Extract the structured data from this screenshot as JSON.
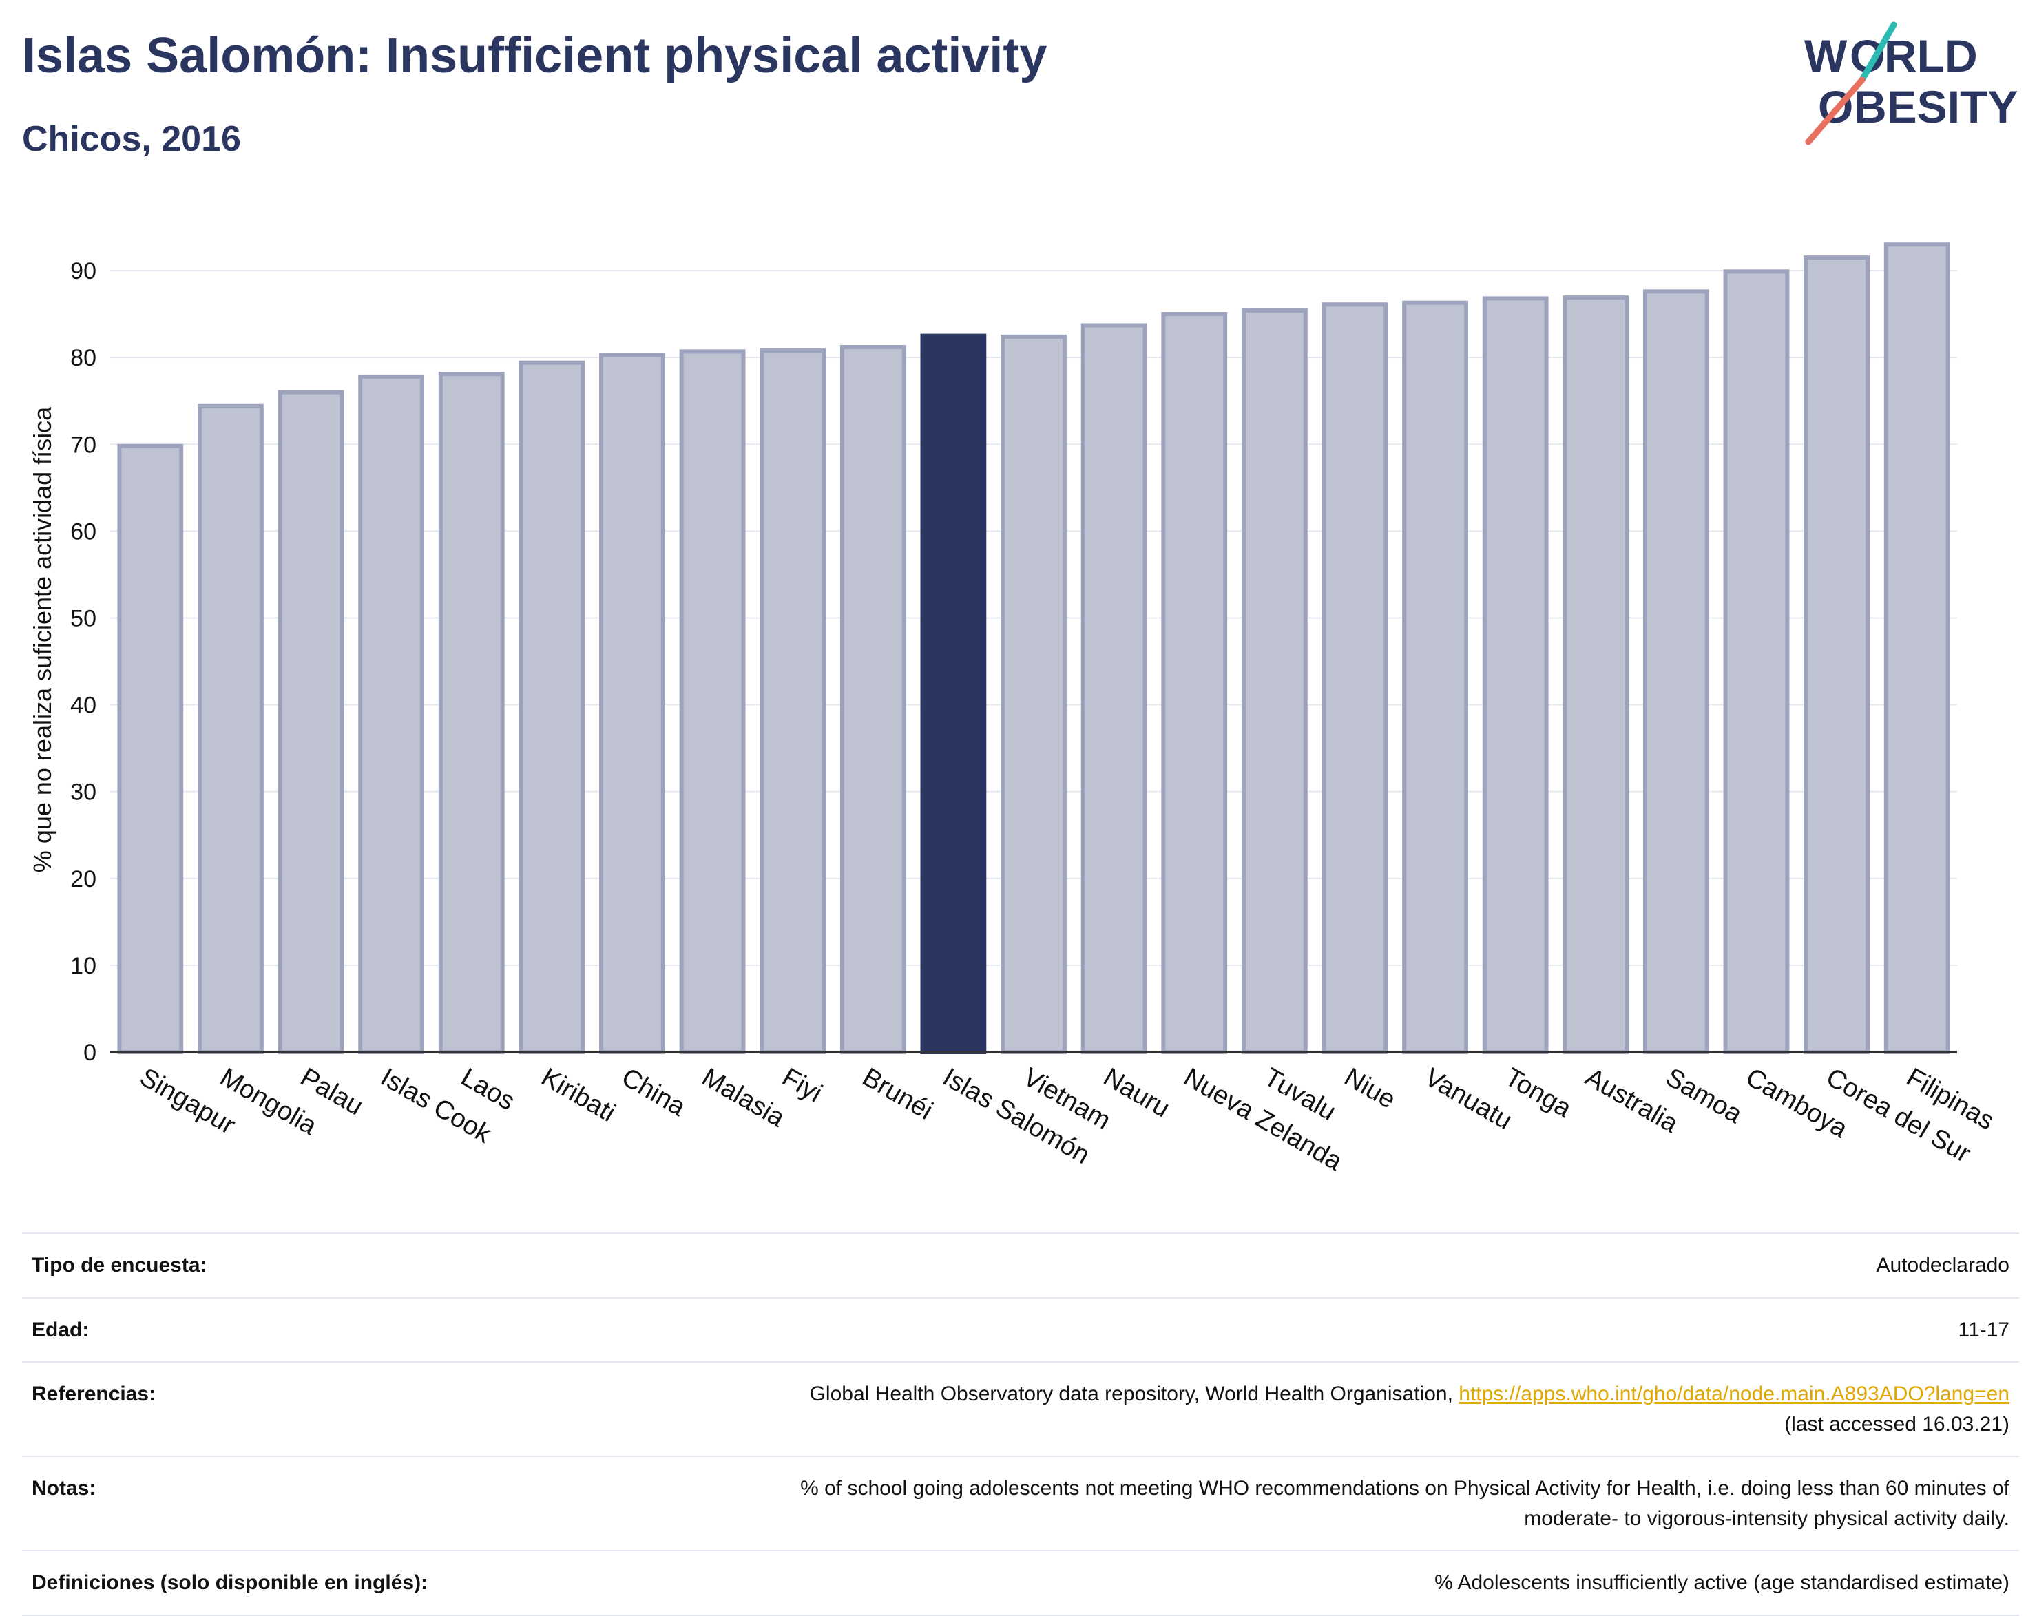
{
  "header": {
    "title": "Islas Salomón: Insufficient physical activity",
    "subtitle": "Chicos, 2016"
  },
  "logo": {
    "line1": "W RLD",
    "line2": "BESITY",
    "letter_o": "O",
    "colors": {
      "navy": "#2a3560",
      "teal": "#2bbbb3",
      "coral": "#e8705e"
    }
  },
  "chart_data": {
    "type": "bar",
    "ylabel": "% que no realiza suficiente actividad física",
    "ylim": [
      0,
      95
    ],
    "yticks": [
      0,
      10,
      20,
      30,
      40,
      50,
      60,
      70,
      80,
      90
    ],
    "grid": true,
    "highlight": "Islas Salomón",
    "categories": [
      "Singapur",
      "Mongolia",
      "Palau",
      "Islas Cook",
      "Laos",
      "Kiribati",
      "China",
      "Malasia",
      "Fiyi",
      "Brunéi",
      "Islas Salomón",
      "Vietnam",
      "Nauru",
      "Nueva Zelanda",
      "Tuvalu",
      "Niue",
      "Vanuatu",
      "Tonga",
      "Australia",
      "Samoa",
      "Camboya",
      "Corea del Sur",
      "Filipinas"
    ],
    "values": [
      69.8,
      74.4,
      76.0,
      77.8,
      78.1,
      79.4,
      80.3,
      80.7,
      80.8,
      81.2,
      82.5,
      82.4,
      83.7,
      85.0,
      85.4,
      86.1,
      86.3,
      86.8,
      86.9,
      87.6,
      89.9,
      91.5,
      93.0
    ],
    "colors": {
      "bar_fill": "#bfc3d1",
      "bar_stroke": "#9da3bd",
      "highlight_fill": "#2a3560",
      "grid": "#e6e8ef",
      "axis": "#333333"
    }
  },
  "footer": {
    "rows": [
      {
        "label": "Tipo de encuesta:",
        "value": "Autodeclarado"
      },
      {
        "label": "Edad:",
        "value": "11-17"
      },
      {
        "label": "Referencias:",
        "value": "Global Health Observatory data repository, World Health Organisation, ",
        "link": "https://apps.who.int/gho/data/node.main.A893ADO?lang=en",
        "value2": "(last accessed 16.03.21)"
      },
      {
        "label": "Notas:",
        "value": "% of school going adolescents not meeting WHO recommendations on Physical Activity for Health, i.e. doing less than 60 minutes of",
        "value2": "moderate- to vigorous-intensity physical activity daily."
      },
      {
        "label": "Definiciones (solo disponible en inglés):",
        "value": "% Adolescents insufficiently active (age standardised estimate)"
      }
    ]
  }
}
